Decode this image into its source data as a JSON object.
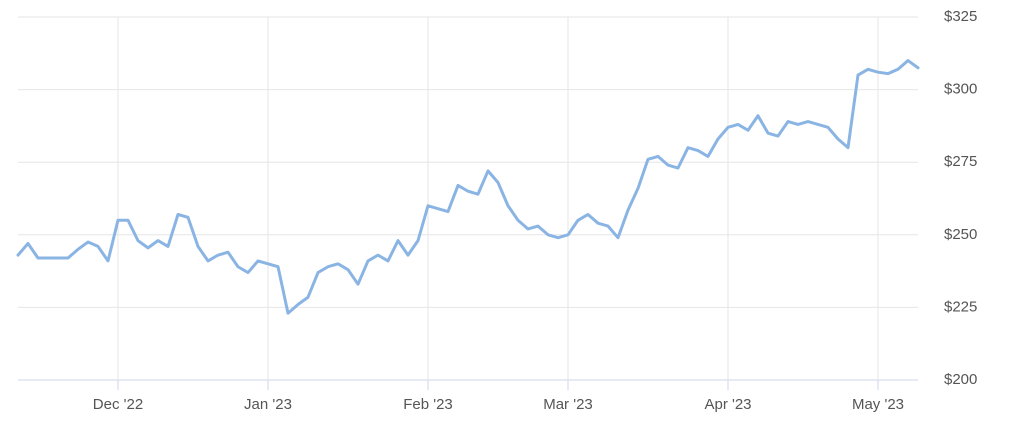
{
  "chart_data": {
    "type": "line",
    "categories": [
      null,
      null,
      null,
      null,
      null,
      null,
      null,
      null,
      null,
      null,
      "Dec '22",
      null,
      null,
      null,
      null,
      null,
      null,
      null,
      null,
      null,
      null,
      null,
      null,
      null,
      null,
      "Jan '23",
      null,
      null,
      null,
      null,
      null,
      null,
      null,
      null,
      null,
      null,
      null,
      null,
      null,
      null,
      null,
      "Feb '23",
      null,
      null,
      null,
      null,
      null,
      null,
      null,
      null,
      null,
      null,
      null,
      null,
      null,
      "Mar '23",
      null,
      null,
      null,
      null,
      null,
      null,
      null,
      null,
      null,
      null,
      null,
      null,
      null,
      null,
      null,
      "Apr '23",
      null,
      null,
      null,
      null,
      null,
      null,
      null,
      null,
      null,
      null,
      null,
      null,
      null,
      null,
      "May '23",
      null,
      null,
      null,
      null
    ],
    "values": [
      243,
      247,
      242,
      242,
      242,
      242,
      245,
      247.5,
      246,
      241,
      255,
      255,
      248,
      245.5,
      248,
      246,
      257,
      256,
      246,
      241,
      243,
      244,
      239,
      237,
      241,
      240,
      239,
      223,
      226,
      228.5,
      237,
      239,
      240,
      238,
      233,
      241,
      243,
      241,
      248,
      243,
      248,
      260,
      259,
      258,
      267,
      265,
      264,
      272,
      268,
      260,
      255,
      252,
      253,
      250,
      249,
      250,
      255,
      257,
      254,
      253,
      249,
      258.5,
      266,
      276,
      277,
      274,
      273,
      280,
      279,
      277,
      283,
      287,
      288,
      286,
      291,
      285,
      284,
      289,
      288,
      289,
      288,
      287,
      283,
      280,
      305,
      307,
      306,
      305.5,
      307,
      310,
      307.5
    ],
    "color": "#8ab4e3",
    "ylim": [
      200,
      325
    ],
    "yticks": [
      {
        "value": 200,
        "label": "$200"
      },
      {
        "value": 225,
        "label": "$225"
      },
      {
        "value": 250,
        "label": "$250"
      },
      {
        "value": 275,
        "label": "$275"
      },
      {
        "value": 300,
        "label": "$300"
      },
      {
        "value": 325,
        "label": "$325"
      }
    ],
    "grid": true
  }
}
